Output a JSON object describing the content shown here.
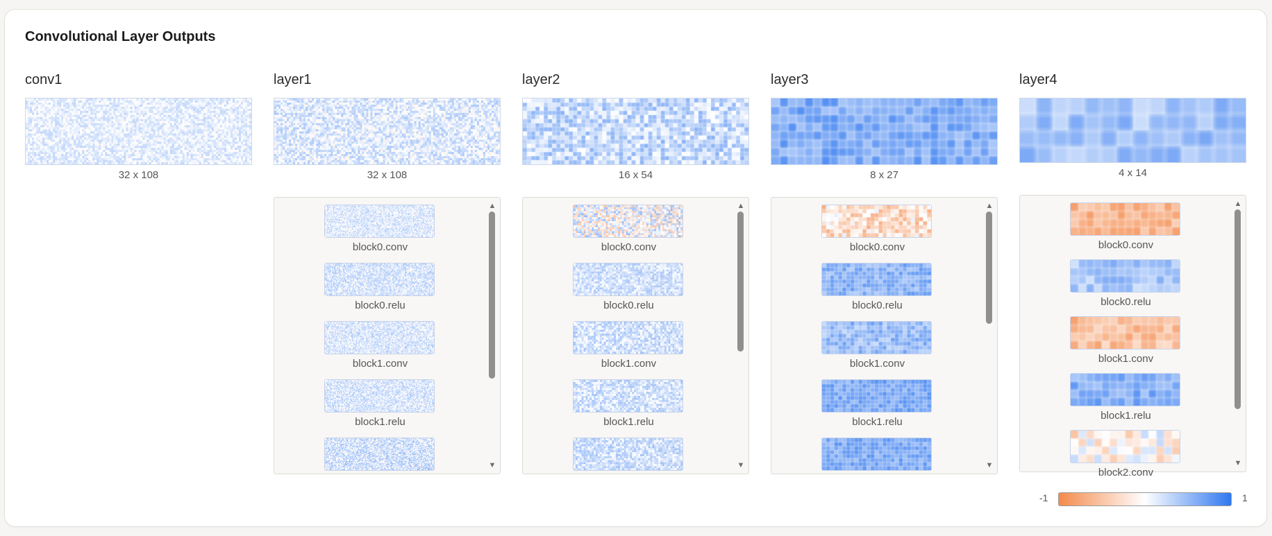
{
  "title": "Convolutional Layer Outputs",
  "colors": {
    "negative": "#f48a4c",
    "zero": "#ffffff",
    "positive": "#2f77f0"
  },
  "legend": {
    "min": "-1",
    "max": "1"
  },
  "layers": [
    {
      "name": "conv1",
      "dims": "32 x 108",
      "rows": 32,
      "cols": 108,
      "intensity": 0.18,
      "bias": 0.12,
      "sublayers": []
    },
    {
      "name": "layer1",
      "dims": "32 x 108",
      "rows": 32,
      "cols": 108,
      "intensity": 0.25,
      "bias": 0.15,
      "scroll": {
        "position": 0.0,
        "visible_fraction": 0.67
      },
      "sublayers": [
        {
          "label": "block0.conv",
          "rows": 32,
          "cols": 108,
          "intensity": 0.22,
          "bias": 0.14
        },
        {
          "label": "block0.relu",
          "rows": 32,
          "cols": 108,
          "intensity": 0.25,
          "bias": 0.18
        },
        {
          "label": "block1.conv",
          "rows": 32,
          "cols": 108,
          "intensity": 0.24,
          "bias": 0.16
        },
        {
          "label": "block1.relu",
          "rows": 32,
          "cols": 108,
          "intensity": 0.24,
          "bias": 0.17
        },
        {
          "label": "",
          "rows": 32,
          "cols": 108,
          "intensity": 0.3,
          "bias": 0.2
        }
      ]
    },
    {
      "name": "layer2",
      "dims": "16 x 54",
      "rows": 16,
      "cols": 54,
      "intensity": 0.28,
      "bias": 0.28,
      "scroll": {
        "position": 0.0,
        "visible_fraction": 0.56
      },
      "sublayers": [
        {
          "label": "block0.conv",
          "rows": 16,
          "cols": 54,
          "intensity": 0.55,
          "bias": 0.0
        },
        {
          "label": "block0.relu",
          "rows": 16,
          "cols": 54,
          "intensity": 0.22,
          "bias": 0.22
        },
        {
          "label": "block1.conv",
          "rows": 16,
          "cols": 54,
          "intensity": 0.25,
          "bias": 0.23
        },
        {
          "label": "block1.relu",
          "rows": 16,
          "cols": 54,
          "intensity": 0.25,
          "bias": 0.23
        },
        {
          "label": "",
          "rows": 16,
          "cols": 54,
          "intensity": 0.25,
          "bias": 0.25
        }
      ]
    },
    {
      "name": "layer3",
      "dims": "8 x 27",
      "rows": 8,
      "cols": 27,
      "intensity": 0.2,
      "bias": 0.62,
      "scroll": {
        "position": 0.0,
        "visible_fraction": 0.45
      },
      "sublayers": [
        {
          "label": "block0.conv",
          "rows": 8,
          "cols": 27,
          "intensity": 0.4,
          "bias": -0.28
        },
        {
          "label": "block0.relu",
          "rows": 8,
          "cols": 27,
          "intensity": 0.2,
          "bias": 0.55
        },
        {
          "label": "block1.conv",
          "rows": 8,
          "cols": 27,
          "intensity": 0.22,
          "bias": 0.48
        },
        {
          "label": "block1.relu",
          "rows": 8,
          "cols": 27,
          "intensity": 0.18,
          "bias": 0.62
        },
        {
          "label": "",
          "rows": 8,
          "cols": 27,
          "intensity": 0.18,
          "bias": 0.6
        }
      ]
    },
    {
      "name": "layer4",
      "dims": "4 x 14",
      "rows": 4,
      "cols": 14,
      "intensity": 0.2,
      "bias": 0.45,
      "scroll": {
        "position": 0.0,
        "visible_fraction": 0.8
      },
      "sublayers": [
        {
          "label": "block0.conv",
          "rows": 4,
          "cols": 14,
          "intensity": 0.2,
          "bias": -0.62
        },
        {
          "label": "block0.relu",
          "rows": 4,
          "cols": 14,
          "intensity": 0.2,
          "bias": 0.42
        },
        {
          "label": "block1.conv",
          "rows": 4,
          "cols": 14,
          "intensity": 0.25,
          "bias": -0.55
        },
        {
          "label": "block1.relu",
          "rows": 4,
          "cols": 14,
          "intensity": 0.18,
          "bias": 0.6
        },
        {
          "label": "block2.conv",
          "rows": 4,
          "cols": 14,
          "intensity": 0.4,
          "bias": -0.1
        }
      ]
    }
  ]
}
